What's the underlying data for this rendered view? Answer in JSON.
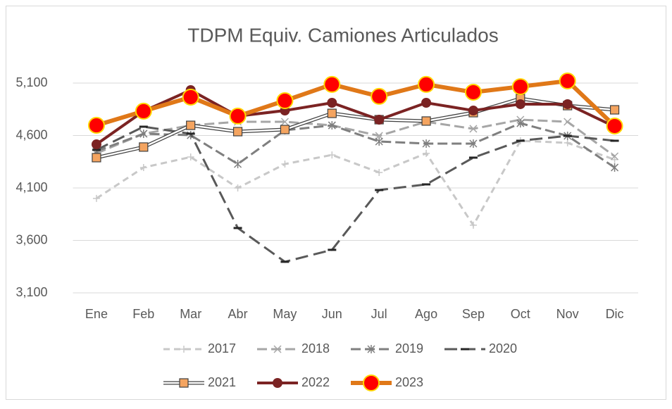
{
  "chart_data": {
    "type": "line",
    "title": "TDPM Equiv. Camiones Articulados",
    "categories": [
      "Ene",
      "Feb",
      "Mar",
      "Abr",
      "May",
      "Jun",
      "Jul",
      "Ago",
      "Sep",
      "Oct",
      "Nov",
      "Dic"
    ],
    "ylim": [
      3100,
      5250
    ],
    "yticks": [
      {
        "value": 3100,
        "label": "3,100"
      },
      {
        "value": 3600,
        "label": "3,600"
      },
      {
        "value": 4100,
        "label": "4,100"
      },
      {
        "value": 4600,
        "label": "4,600"
      },
      {
        "value": 5100,
        "label": "5,100"
      }
    ],
    "grid": true,
    "legend": "bottom",
    "series": [
      {
        "name": "2017",
        "color": "#c8c8c8",
        "dash": "9,6",
        "width": 3,
        "marker": "plus",
        "values": [
          4000,
          4295,
          4395,
          4100,
          4328,
          4415,
          4248,
          4430,
          3745,
          4550,
          4530,
          4370
        ]
      },
      {
        "name": "2018",
        "color": "#a6a6a6",
        "dash": "14,6",
        "width": 3,
        "marker": "cross",
        "values": [
          4430,
          4617,
          4697,
          4731,
          4731,
          4697,
          4597,
          4731,
          4664,
          4751,
          4731,
          4402
        ]
      },
      {
        "name": "2019",
        "color": "#7f7f7f",
        "dash": "14,6",
        "width": 3,
        "marker": "star",
        "values": [
          4450,
          4617,
          4603,
          4328,
          4650,
          4697,
          4543,
          4523,
          4523,
          4717,
          4597,
          4295
        ]
      },
      {
        "name": "2020",
        "color": "#595959",
        "dash": "18,8",
        "width": 3,
        "marker": "dash",
        "values": [
          4463,
          4684,
          4617,
          3718,
          3396,
          3510,
          4080,
          4134,
          4389,
          4550,
          4597,
          4550
        ]
      },
      {
        "name": "2021",
        "color": "#404040",
        "dash": "",
        "width": 4,
        "marker": "square",
        "markerColor": "#f4a460",
        "values": [
          4389,
          4490,
          4697,
          4637,
          4657,
          4811,
          4751,
          4738,
          4818,
          4952,
          4885,
          4845
        ]
      },
      {
        "name": "2022",
        "color": "#7b2323",
        "dash": "",
        "width": 4,
        "marker": "circle",
        "markerColor": "#7b2323",
        "values": [
          4516,
          4832,
          5033,
          4785,
          4838,
          4912,
          4751,
          4912,
          4838,
          4899,
          4899,
          4684
        ]
      },
      {
        "name": "2023",
        "color": "#e07818",
        "dash": "",
        "width": 6,
        "marker": "bigcircle",
        "markerColor": "#ff0000",
        "values": [
          4697,
          4832,
          4966,
          4785,
          4932,
          5087,
          4973,
          5087,
          5013,
          5066,
          5120,
          4691
        ]
      }
    ]
  }
}
